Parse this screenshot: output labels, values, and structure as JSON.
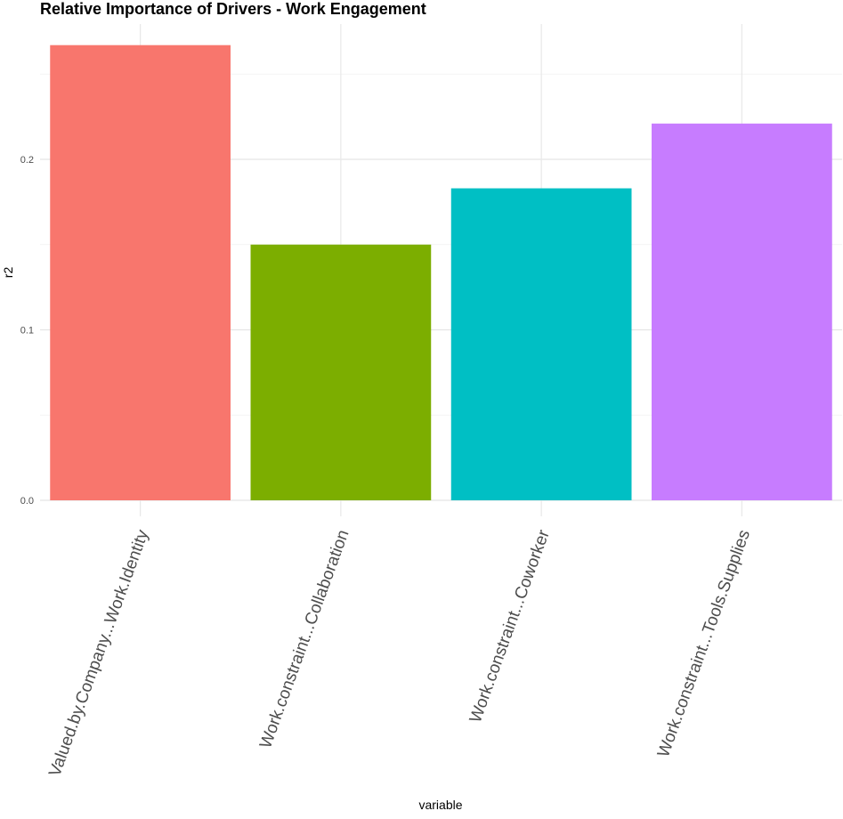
{
  "chart_data": {
    "type": "bar",
    "title": "Relative Importance of Drivers - Work Engagement",
    "xlabel": "variable",
    "ylabel": "r2",
    "categories": [
      "Valued.by.Company...Work.Identity",
      "Work.constraint...Collaboration",
      "Work.constraint...Coworker",
      "Work.constraint...Tools.Supplies"
    ],
    "values": [
      0.267,
      0.15,
      0.183,
      0.221
    ],
    "colors": [
      "#F8766D",
      "#7CAE00",
      "#00BFC4",
      "#C77CFF"
    ],
    "ylim": [
      0,
      0.28
    ],
    "yticks": [
      0.0,
      0.1,
      0.2
    ],
    "ytick_labels": [
      "0.0",
      "0.1",
      "0.2"
    ],
    "grid": true,
    "legend": "none",
    "x_tick_rotation": -70
  }
}
